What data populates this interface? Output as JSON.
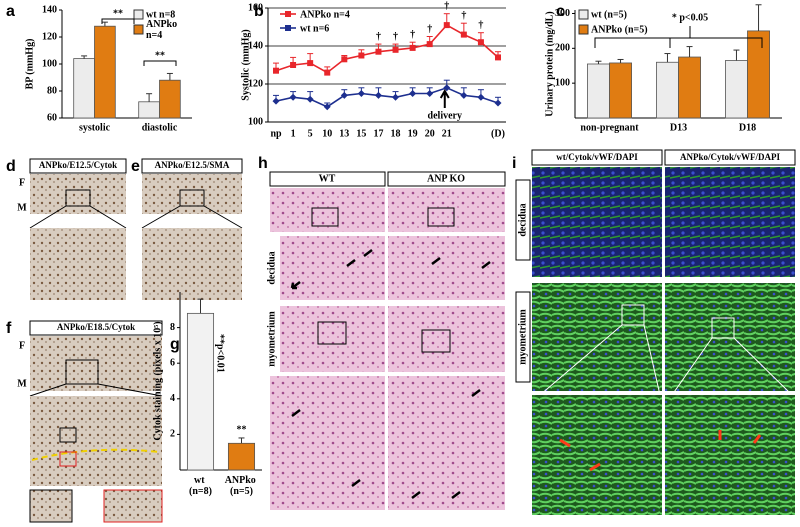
{
  "chart_data": [
    {
      "type": "bar",
      "panel": "a",
      "y_label": "BP (mmHg)",
      "categories": [
        "systolic",
        "diastolic"
      ],
      "series": [
        {
          "name": "wt n=8",
          "color": "#ececec",
          "values": [
            104,
            72
          ],
          "errors": [
            2,
            6
          ]
        },
        {
          "name": "ANPko n=4",
          "color": "#e07c12",
          "values": [
            128,
            88
          ],
          "errors": [
            3,
            5
          ]
        }
      ],
      "ylim": [
        60,
        140
      ],
      "yticks": [
        60,
        80,
        100,
        120,
        140
      ],
      "annotations": [
        "**",
        "**"
      ]
    },
    {
      "type": "line",
      "panel": "b",
      "y_label": "Systolic (mmHg)",
      "categories": [
        "np",
        "1",
        "5",
        "10",
        "13",
        "15",
        "17",
        "18",
        "19",
        "20",
        "21",
        null,
        null,
        "(D)"
      ],
      "series": [
        {
          "name": "ANPko n=4",
          "color": "#e8262b",
          "values": [
            127,
            130,
            131,
            126,
            133,
            135,
            137,
            138,
            139,
            141,
            151,
            146,
            142,
            134
          ],
          "errors": [
            4,
            4,
            5,
            3,
            2,
            3,
            4,
            3,
            3,
            4,
            6,
            6,
            5,
            3
          ]
        },
        {
          "name": "wt n=6",
          "color": "#1d2f8f",
          "values": [
            111,
            113,
            112,
            108,
            114,
            115,
            114,
            113,
            115,
            115,
            118,
            114,
            113,
            110
          ],
          "errors": [
            3,
            3,
            4,
            2,
            3,
            3,
            4,
            3,
            3,
            3,
            4,
            4,
            4,
            3
          ]
        }
      ],
      "ylim": [
        100,
        160
      ],
      "yticks": [
        100,
        120,
        140,
        160
      ],
      "grid": true,
      "annotations": [
        "†",
        "†",
        "†",
        "†",
        "†",
        "†",
        "†",
        "delivery"
      ]
    },
    {
      "type": "bar",
      "panel": "c",
      "y_label": "Urinary protein (mg/dL)",
      "categories": [
        "non-pregnant",
        "D13",
        "D18"
      ],
      "series": [
        {
          "name": "wt (n=5)",
          "color": "#ececec",
          "values": [
            155,
            160,
            165
          ],
          "errors": [
            8,
            25,
            30
          ]
        },
        {
          "name": "ANPko (n=5)",
          "color": "#e07c12",
          "values": [
            158,
            175,
            250
          ],
          "errors": [
            10,
            30,
            75
          ]
        }
      ],
      "ylim": [
        0,
        310
      ],
      "yticks": [
        100,
        200,
        300
      ],
      "annotations": [
        "* p<0.05"
      ]
    },
    {
      "type": "bar",
      "panel": "g",
      "y_label": "Cytok staining (pixels x 10⁵)",
      "categories": [
        "wt (n=8)",
        "ANPko (n=5)"
      ],
      "values": [
        8.8,
        1.5
      ],
      "errors": [
        0.8,
        0.3
      ],
      "colors": [
        "#f2f2f2",
        "#e07c12"
      ],
      "ylim": [
        0,
        10
      ],
      "yticks": [
        2,
        4,
        6,
        8
      ],
      "annotations": [
        "**p<0.01",
        "**"
      ]
    }
  ],
  "panels": {
    "d": {
      "letter": "d",
      "title": "ANPko/E12.5/Cytok",
      "labels": [
        "F",
        "M"
      ]
    },
    "e": {
      "letter": "e",
      "title": "ANPko/E12.5/SMA"
    },
    "f": {
      "letter": "f",
      "title": "ANPko/E18.5/Cytok",
      "labels": [
        "F",
        "M"
      ]
    },
    "h": {
      "letter": "h",
      "columns": [
        "WT",
        "ANP KO"
      ],
      "rows": [
        "decidua",
        "myometrium"
      ]
    },
    "i": {
      "letter": "i",
      "columns": [
        "wt/Cytok/vWF/DAPI",
        "ANPko/Cytok/vWF/DAPI"
      ],
      "rows": [
        "decidua",
        "myometrium"
      ]
    }
  }
}
